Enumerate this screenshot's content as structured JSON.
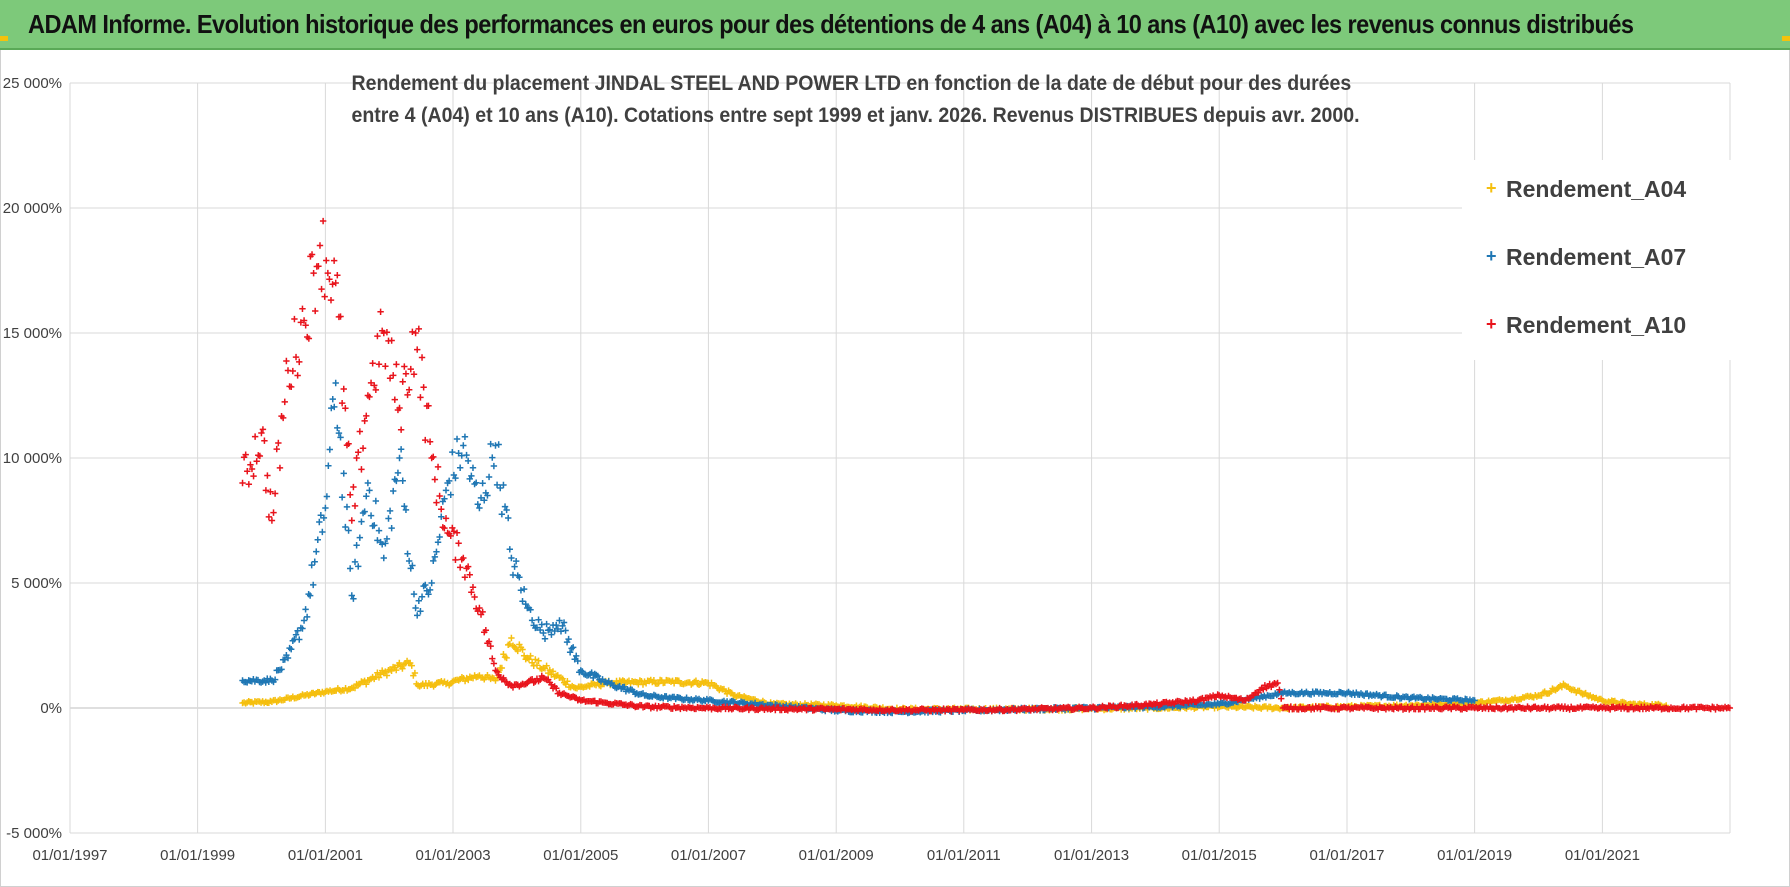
{
  "banner": {
    "title": "ADAM Informe. Evolution historique des performances en euros pour des détentions de 4 ans (A04) à 10 ans (A10) avec les revenus connus distribués"
  },
  "colors": {
    "banner_bg": "#7dc97a",
    "A04": "#f5bf0f",
    "A07": "#1f77b4",
    "A10": "#e8141c",
    "grid": "#d9d9d9"
  },
  "chart_data": {
    "type": "scatter",
    "title_line1": "Rendement du placement JINDAL STEEL AND POWER LTD en fonction de la date de début pour des durées",
    "title_line2": "entre 4 (A04) et 10 ans (A10).  Cotations entre sept 1999 et janv. 2026. Revenus DISTRIBUES depuis avr. 2000.",
    "xlabel": "",
    "ylabel": "",
    "x_range": [
      "01/01/1997",
      "01/01/2023"
    ],
    "x_ticks": [
      "01/01/1997",
      "01/01/1999",
      "01/01/2001",
      "01/01/2003",
      "01/01/2005",
      "01/01/2007",
      "01/01/2009",
      "01/01/2011",
      "01/01/2013",
      "01/01/2015",
      "01/01/2017",
      "01/01/2019",
      "01/01/2021"
    ],
    "y_range": [
      -5000,
      25000
    ],
    "y_ticks": [
      -5000,
      0,
      5000,
      10000,
      15000,
      20000,
      25000
    ],
    "y_tick_labels": [
      "-5 000%",
      "0%",
      "5 000%",
      "10 000%",
      "15 000%",
      "20 000%",
      "25 000%"
    ],
    "grid": true,
    "legend_position": "right",
    "marker": "+",
    "series": [
      {
        "name": "Rendement_A04",
        "color": "#f5bf0f",
        "points": [
          [
            "1999-09-15",
            200
          ],
          [
            "2000-03-01",
            250
          ],
          [
            "2000-09-01",
            500
          ],
          [
            "2001-01-01",
            650
          ],
          [
            "2001-06-01",
            800
          ],
          [
            "2001-12-01",
            1400
          ],
          [
            "2002-05-01",
            1800
          ],
          [
            "2002-06-15",
            900
          ],
          [
            "2002-12-01",
            1000
          ],
          [
            "2003-06-01",
            1300
          ],
          [
            "2003-09-01",
            1100
          ],
          [
            "2003-12-01",
            2800
          ],
          [
            "2004-03-01",
            2000
          ],
          [
            "2004-06-01",
            1600
          ],
          [
            "2004-12-01",
            800
          ],
          [
            "2005-06-01",
            1000
          ],
          [
            "2006-06-01",
            1050
          ],
          [
            "2007-01-01",
            1000
          ],
          [
            "2007-06-01",
            500
          ],
          [
            "2008-01-01",
            150
          ],
          [
            "2009-01-01",
            100
          ],
          [
            "2010-01-01",
            -50
          ],
          [
            "2011-01-01",
            -50
          ],
          [
            "2012-01-01",
            -50
          ],
          [
            "2013-01-01",
            -30
          ],
          [
            "2014-01-01",
            0
          ],
          [
            "2015-01-01",
            50
          ],
          [
            "2016-01-01",
            0
          ],
          [
            "2017-01-01",
            50
          ],
          [
            "2018-01-01",
            100
          ],
          [
            "2019-01-01",
            200
          ],
          [
            "2019-06-01",
            300
          ],
          [
            "2020-01-01",
            500
          ],
          [
            "2020-06-01",
            900
          ],
          [
            "2020-09-01",
            600
          ],
          [
            "2021-01-01",
            300
          ],
          [
            "2021-06-01",
            150
          ],
          [
            "2022-01-01",
            100
          ]
        ]
      },
      {
        "name": "Rendement_A07",
        "color": "#1f77b4",
        "points": [
          [
            "1999-09-15",
            1100
          ],
          [
            "2000-03-01",
            1100
          ],
          [
            "2000-06-01",
            2000
          ],
          [
            "2000-09-01",
            3500
          ],
          [
            "2001-01-01",
            8000
          ],
          [
            "2001-03-01",
            13000
          ],
          [
            "2001-06-01",
            4500
          ],
          [
            "2001-09-01",
            9000
          ],
          [
            "2001-12-01",
            6000
          ],
          [
            "2002-03-01",
            10000
          ],
          [
            "2002-06-01",
            4000
          ],
          [
            "2002-09-01",
            5000
          ],
          [
            "2002-12-01",
            9000
          ],
          [
            "2003-03-01",
            10500
          ],
          [
            "2003-06-01",
            8000
          ],
          [
            "2003-09-01",
            10500
          ],
          [
            "2003-12-01",
            6000
          ],
          [
            "2004-03-01",
            4000
          ],
          [
            "2004-06-01",
            3000
          ],
          [
            "2004-09-01",
            3500
          ],
          [
            "2005-01-01",
            1500
          ],
          [
            "2005-06-01",
            1000
          ],
          [
            "2006-01-01",
            500
          ],
          [
            "2006-06-01",
            400
          ],
          [
            "2007-01-01",
            300
          ],
          [
            "2008-01-01",
            100
          ],
          [
            "2009-01-01",
            -100
          ],
          [
            "2010-01-01",
            -150
          ],
          [
            "2011-01-01",
            -100
          ],
          [
            "2012-01-01",
            -50
          ],
          [
            "2013-01-01",
            0
          ],
          [
            "2014-01-01",
            50
          ],
          [
            "2015-01-01",
            150
          ],
          [
            "2016-01-01",
            600
          ],
          [
            "2017-01-01",
            600
          ],
          [
            "2018-01-01",
            400
          ],
          [
            "2019-01-01",
            300
          ]
        ]
      },
      {
        "name": "Rendement_A10",
        "color": "#e8141c",
        "points": [
          [
            "1999-09-15",
            9000
          ],
          [
            "2000-01-01",
            11000
          ],
          [
            "2000-03-01",
            7500
          ],
          [
            "2000-06-01",
            13500
          ],
          [
            "2000-09-01",
            15500
          ],
          [
            "2000-12-01",
            18500
          ],
          [
            "2001-03-01",
            17000
          ],
          [
            "2001-06-01",
            7500
          ],
          [
            "2001-09-01",
            12500
          ],
          [
            "2001-12-01",
            15000
          ],
          [
            "2002-03-01",
            12000
          ],
          [
            "2002-06-01",
            15000
          ],
          [
            "2002-09-01",
            10000
          ],
          [
            "2002-12-01",
            7000
          ],
          [
            "2003-03-01",
            6000
          ],
          [
            "2003-06-01",
            4000
          ],
          [
            "2003-09-01",
            1500
          ],
          [
            "2003-12-01",
            900
          ],
          [
            "2004-03-01",
            1000
          ],
          [
            "2004-06-01",
            1200
          ],
          [
            "2004-09-01",
            600
          ],
          [
            "2005-01-01",
            300
          ],
          [
            "2005-06-01",
            200
          ],
          [
            "2006-01-01",
            50
          ],
          [
            "2007-01-01",
            0
          ],
          [
            "2008-01-01",
            -30
          ],
          [
            "2009-01-01",
            -50
          ],
          [
            "2010-01-01",
            -80
          ],
          [
            "2011-01-01",
            -80
          ],
          [
            "2012-01-01",
            -50
          ],
          [
            "2013-01-01",
            0
          ],
          [
            "2014-01-01",
            150
          ],
          [
            "2014-09-01",
            300
          ],
          [
            "2015-01-01",
            500
          ],
          [
            "2015-06-01",
            300
          ],
          [
            "2015-09-01",
            800
          ],
          [
            "2015-12-01",
            1000
          ],
          [
            "2016-01-01",
            0
          ],
          [
            "2017-01-01",
            0
          ],
          [
            "2018-01-01",
            0
          ],
          [
            "2019-01-01",
            0
          ],
          [
            "2020-01-01",
            0
          ],
          [
            "2021-01-01",
            0
          ],
          [
            "2022-01-01",
            0
          ],
          [
            "2022-12-31",
            0
          ]
        ]
      }
    ]
  }
}
